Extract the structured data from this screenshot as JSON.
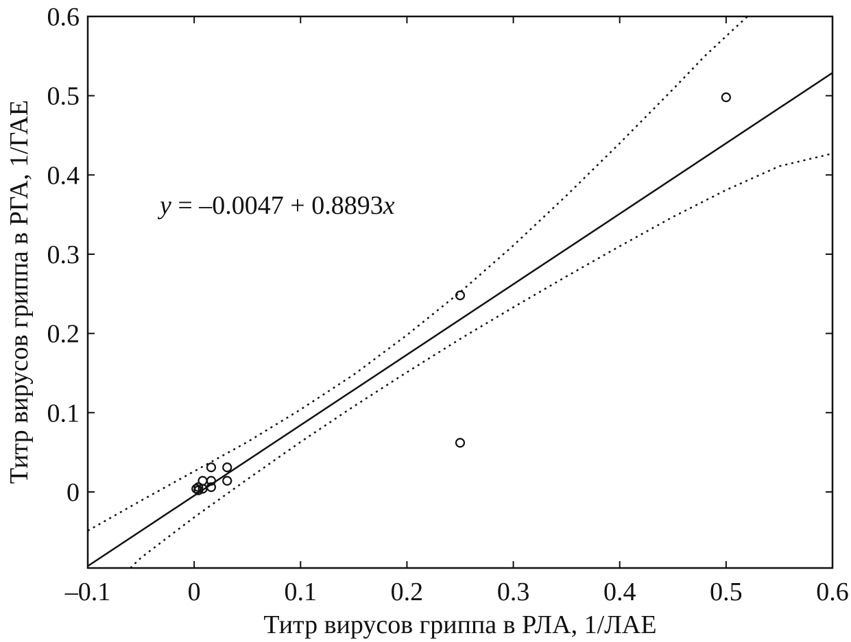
{
  "chart_data": {
    "type": "scatter",
    "title": "",
    "xlabel": "Титр вирусов гриппа в РЛА, 1/ЛАЕ",
    "ylabel": "Титр вирусов гриппа в РГА, 1/ГАЕ",
    "xlim": [
      -0.1,
      0.6
    ],
    "ylim": [
      -0.096,
      0.6
    ],
    "x_ticks": [
      -0.1,
      0,
      0.1,
      0.2,
      0.3,
      0.4,
      0.5,
      0.6
    ],
    "x_tick_labels": [
      "–0.1",
      "0",
      "0.1",
      "0.2",
      "0.3",
      "0.4",
      "0.5",
      "0.6"
    ],
    "y_ticks": [
      0,
      0.1,
      0.2,
      0.3,
      0.4,
      0.5,
      0.6
    ],
    "y_tick_labels": [
      "0",
      "0.1",
      "0.2",
      "0.3",
      "0.4",
      "0.5",
      "0.6"
    ],
    "grid": false,
    "points": [
      {
        "x": 0.002,
        "y": 0.004
      },
      {
        "x": 0.004,
        "y": 0.002
      },
      {
        "x": 0.004,
        "y": 0.006
      },
      {
        "x": 0.008,
        "y": 0.004
      },
      {
        "x": 0.008,
        "y": 0.014
      },
      {
        "x": 0.016,
        "y": 0.006
      },
      {
        "x": 0.016,
        "y": 0.014
      },
      {
        "x": 0.016,
        "y": 0.031
      },
      {
        "x": 0.031,
        "y": 0.014
      },
      {
        "x": 0.031,
        "y": 0.031
      },
      {
        "x": 0.25,
        "y": 0.248
      },
      {
        "x": 0.25,
        "y": 0.062
      },
      {
        "x": 0.5,
        "y": 0.498
      }
    ],
    "regression": {
      "intercept": -0.0047,
      "slope": 0.8893,
      "equation_y": "y",
      "equation_mid": " = –0.0047 + 0.8893",
      "equation_x": "x"
    },
    "confidence_band": {
      "upper": [
        {
          "x": -0.1,
          "y": -0.049
        },
        {
          "x": -0.05,
          "y": -0.011
        },
        {
          "x": 0,
          "y": 0.026
        },
        {
          "x": 0.05,
          "y": 0.063
        },
        {
          "x": 0.1,
          "y": 0.104
        },
        {
          "x": 0.15,
          "y": 0.148
        },
        {
          "x": 0.2,
          "y": 0.198
        },
        {
          "x": 0.25,
          "y": 0.252
        },
        {
          "x": 0.3,
          "y": 0.311
        },
        {
          "x": 0.35,
          "y": 0.374
        },
        {
          "x": 0.4,
          "y": 0.44
        },
        {
          "x": 0.45,
          "y": 0.508
        },
        {
          "x": 0.48,
          "y": 0.55
        },
        {
          "x": 0.52,
          "y": 0.6
        }
      ],
      "lower": [
        {
          "x": -0.06,
          "y": -0.096
        },
        {
          "x": -0.05,
          "y": -0.083
        },
        {
          "x": 0,
          "y": -0.032
        },
        {
          "x": 0.05,
          "y": 0.016
        },
        {
          "x": 0.1,
          "y": 0.063
        },
        {
          "x": 0.15,
          "y": 0.108
        },
        {
          "x": 0.2,
          "y": 0.151
        },
        {
          "x": 0.25,
          "y": 0.193
        },
        {
          "x": 0.3,
          "y": 0.233
        },
        {
          "x": 0.35,
          "y": 0.272
        },
        {
          "x": 0.4,
          "y": 0.31
        },
        {
          "x": 0.45,
          "y": 0.347
        },
        {
          "x": 0.5,
          "y": 0.381
        },
        {
          "x": 0.55,
          "y": 0.411
        },
        {
          "x": 0.6,
          "y": 0.427
        }
      ]
    }
  }
}
